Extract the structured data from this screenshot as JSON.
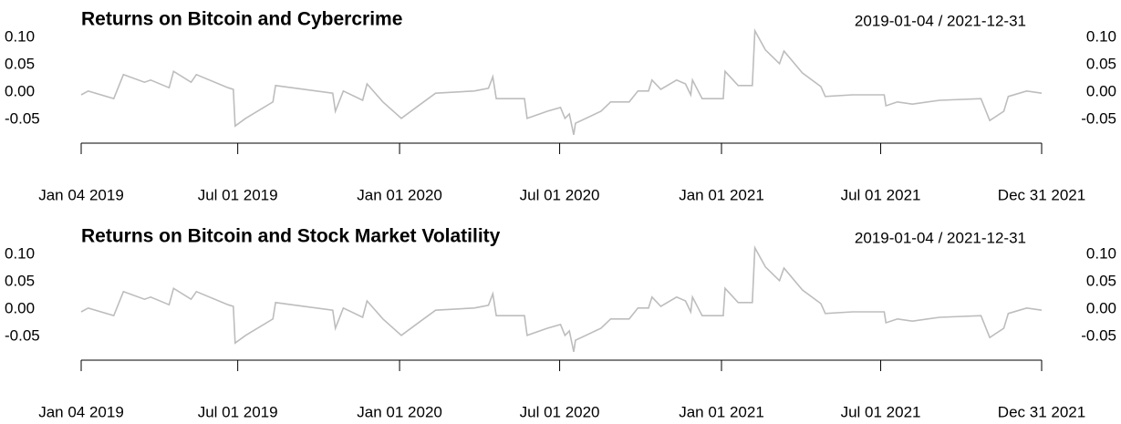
{
  "chart_data": [
    {
      "type": "line",
      "title": "Returns on Bitcoin and Cybercrime",
      "date_range": "2019-01-04 / 2021-12-31",
      "color": "#bdbdbd",
      "x": [
        "2019-01-04",
        "2019-01-12",
        "2019-02-10",
        "2019-02-21",
        "2019-03-17",
        "2019-03-24",
        "2019-04-14",
        "2019-04-19",
        "2019-05-09",
        "2019-05-15",
        "2019-06-20",
        "2019-06-26",
        "2019-06-28",
        "2019-07-10",
        "2019-08-10",
        "2019-08-13",
        "2019-10-17",
        "2019-10-20",
        "2019-10-29",
        "2019-11-20",
        "2019-11-25",
        "2019-12-13",
        "2020-01-03",
        "2020-01-24",
        "2020-02-11",
        "2020-03-26",
        "2020-04-11",
        "2020-04-16",
        "2020-04-20",
        "2020-05-22",
        "2020-05-25",
        "2020-06-17",
        "2020-07-02",
        "2020-07-07",
        "2020-07-12",
        "2020-07-17",
        "2020-07-19",
        "2020-08-17",
        "2020-08-28",
        "2020-09-18",
        "2020-09-28",
        "2020-10-10",
        "2020-10-14",
        "2020-10-24",
        "2020-11-11",
        "2020-11-21",
        "2020-11-27",
        "2020-11-29",
        "2020-12-10",
        "2021-01-03",
        "2021-01-05",
        "2021-01-20",
        "2021-02-05",
        "2021-02-08",
        "2021-02-20",
        "2021-03-08",
        "2021-03-13",
        "2021-04-03",
        "2021-04-24",
        "2021-04-29",
        "2021-05-30",
        "2021-07-05",
        "2021-07-07",
        "2021-07-20",
        "2021-08-06",
        "2021-09-06",
        "2021-10-23",
        "2021-11-02",
        "2021-11-18",
        "2021-11-23",
        "2021-12-14",
        "2021-12-31"
      ],
      "values": [
        -0.005,
        0.002,
        -0.012,
        0.032,
        0.018,
        0.022,
        0.008,
        0.038,
        0.018,
        0.032,
        0.008,
        0.005,
        -0.062,
        -0.048,
        -0.018,
        0.012,
        -0.002,
        -0.035,
        0.002,
        -0.015,
        0.015,
        -0.018,
        -0.048,
        -0.023,
        -0.002,
        0.002,
        0.007,
        0.028,
        -0.012,
        -0.012,
        -0.048,
        -0.035,
        -0.028,
        -0.048,
        -0.04,
        -0.078,
        -0.057,
        -0.035,
        -0.018,
        -0.018,
        0.002,
        0.002,
        0.022,
        0.005,
        0.022,
        0.015,
        -0.005,
        0.022,
        -0.012,
        -0.012,
        0.038,
        0.012,
        0.012,
        0.112,
        0.077,
        0.052,
        0.075,
        0.035,
        0.01,
        -0.008,
        -0.005,
        -0.005,
        -0.025,
        -0.018,
        -0.022,
        -0.015,
        -0.012,
        -0.052,
        -0.035,
        -0.008,
        0.002,
        -0.002
      ],
      "ylim": [
        -0.09,
        0.12
      ],
      "yticks": [
        {
          "value": 0.1,
          "label": "0.10"
        },
        {
          "value": 0.05,
          "label": "0.05"
        },
        {
          "value": 0,
          "label": "0.00"
        },
        {
          "value": -0.05,
          "label": "-0.05"
        }
      ],
      "xlim": [
        "2019-01-04",
        "2021-12-31"
      ],
      "xticks": [
        {
          "value": "2019-01-04",
          "label": "Jan 04 2019"
        },
        {
          "value": "2019-07-01",
          "label": "Jul 01 2019"
        },
        {
          "value": "2020-01-01",
          "label": "Jan 01 2020"
        },
        {
          "value": "2020-07-01",
          "label": "Jul 01 2020"
        },
        {
          "value": "2021-01-01",
          "label": "Jan 01 2021"
        },
        {
          "value": "2021-07-01",
          "label": "Jul 01 2021"
        },
        {
          "value": "2021-12-31",
          "label": "Dec 31 2021"
        }
      ]
    },
    {
      "type": "line",
      "title": "Returns on Bitcoin and Stock Market Volatility",
      "date_range": "2019-01-04 / 2021-12-31",
      "color": "#bdbdbd",
      "x": [
        "2019-01-04",
        "2019-01-12",
        "2019-02-10",
        "2019-02-21",
        "2019-03-17",
        "2019-03-24",
        "2019-04-14",
        "2019-04-19",
        "2019-05-09",
        "2019-05-15",
        "2019-06-20",
        "2019-06-26",
        "2019-06-28",
        "2019-07-10",
        "2019-08-10",
        "2019-08-13",
        "2019-10-17",
        "2019-10-20",
        "2019-10-29",
        "2019-11-20",
        "2019-11-25",
        "2019-12-13",
        "2020-01-03",
        "2020-01-24",
        "2020-02-11",
        "2020-03-26",
        "2020-04-11",
        "2020-04-16",
        "2020-04-20",
        "2020-05-22",
        "2020-05-25",
        "2020-06-17",
        "2020-07-02",
        "2020-07-07",
        "2020-07-12",
        "2020-07-17",
        "2020-07-19",
        "2020-08-17",
        "2020-08-28",
        "2020-09-18",
        "2020-09-28",
        "2020-10-10",
        "2020-10-14",
        "2020-10-24",
        "2020-11-11",
        "2020-11-21",
        "2020-11-27",
        "2020-11-29",
        "2020-12-10",
        "2021-01-03",
        "2021-01-05",
        "2021-01-20",
        "2021-02-05",
        "2021-02-08",
        "2021-02-20",
        "2021-03-08",
        "2021-03-13",
        "2021-04-03",
        "2021-04-24",
        "2021-04-29",
        "2021-05-30",
        "2021-07-05",
        "2021-07-07",
        "2021-07-20",
        "2021-08-06",
        "2021-09-06",
        "2021-10-23",
        "2021-11-02",
        "2021-11-18",
        "2021-11-23",
        "2021-12-14",
        "2021-12-31"
      ],
      "values": [
        -0.005,
        0.002,
        -0.012,
        0.032,
        0.018,
        0.022,
        0.008,
        0.038,
        0.018,
        0.032,
        0.008,
        0.005,
        -0.062,
        -0.048,
        -0.018,
        0.012,
        -0.002,
        -0.035,
        0.002,
        -0.015,
        0.015,
        -0.018,
        -0.048,
        -0.023,
        -0.002,
        0.002,
        0.007,
        0.028,
        -0.012,
        -0.012,
        -0.048,
        -0.035,
        -0.028,
        -0.048,
        -0.04,
        -0.078,
        -0.057,
        -0.035,
        -0.018,
        -0.018,
        0.002,
        0.002,
        0.022,
        0.005,
        0.022,
        0.015,
        -0.005,
        0.022,
        -0.012,
        -0.012,
        0.038,
        0.012,
        0.012,
        0.112,
        0.077,
        0.052,
        0.075,
        0.035,
        0.01,
        -0.008,
        -0.005,
        -0.005,
        -0.025,
        -0.018,
        -0.022,
        -0.015,
        -0.012,
        -0.052,
        -0.035,
        -0.008,
        0.002,
        -0.002
      ],
      "ylim": [
        -0.09,
        0.12
      ],
      "yticks": [
        {
          "value": 0.1,
          "label": "0.10"
        },
        {
          "value": 0.05,
          "label": "0.05"
        },
        {
          "value": 0,
          "label": "0.00"
        },
        {
          "value": -0.05,
          "label": "-0.05"
        }
      ],
      "xlim": [
        "2019-01-04",
        "2021-12-31"
      ],
      "xticks": [
        {
          "value": "2019-01-04",
          "label": "Jan 04 2019"
        },
        {
          "value": "2019-07-01",
          "label": "Jul 01 2019"
        },
        {
          "value": "2020-01-01",
          "label": "Jan 01 2020"
        },
        {
          "value": "2020-07-01",
          "label": "Jul 01 2020"
        },
        {
          "value": "2021-01-01",
          "label": "Jan 01 2021"
        },
        {
          "value": "2021-07-01",
          "label": "Jul 01 2021"
        },
        {
          "value": "2021-12-31",
          "label": "Dec 31 2021"
        }
      ]
    }
  ]
}
